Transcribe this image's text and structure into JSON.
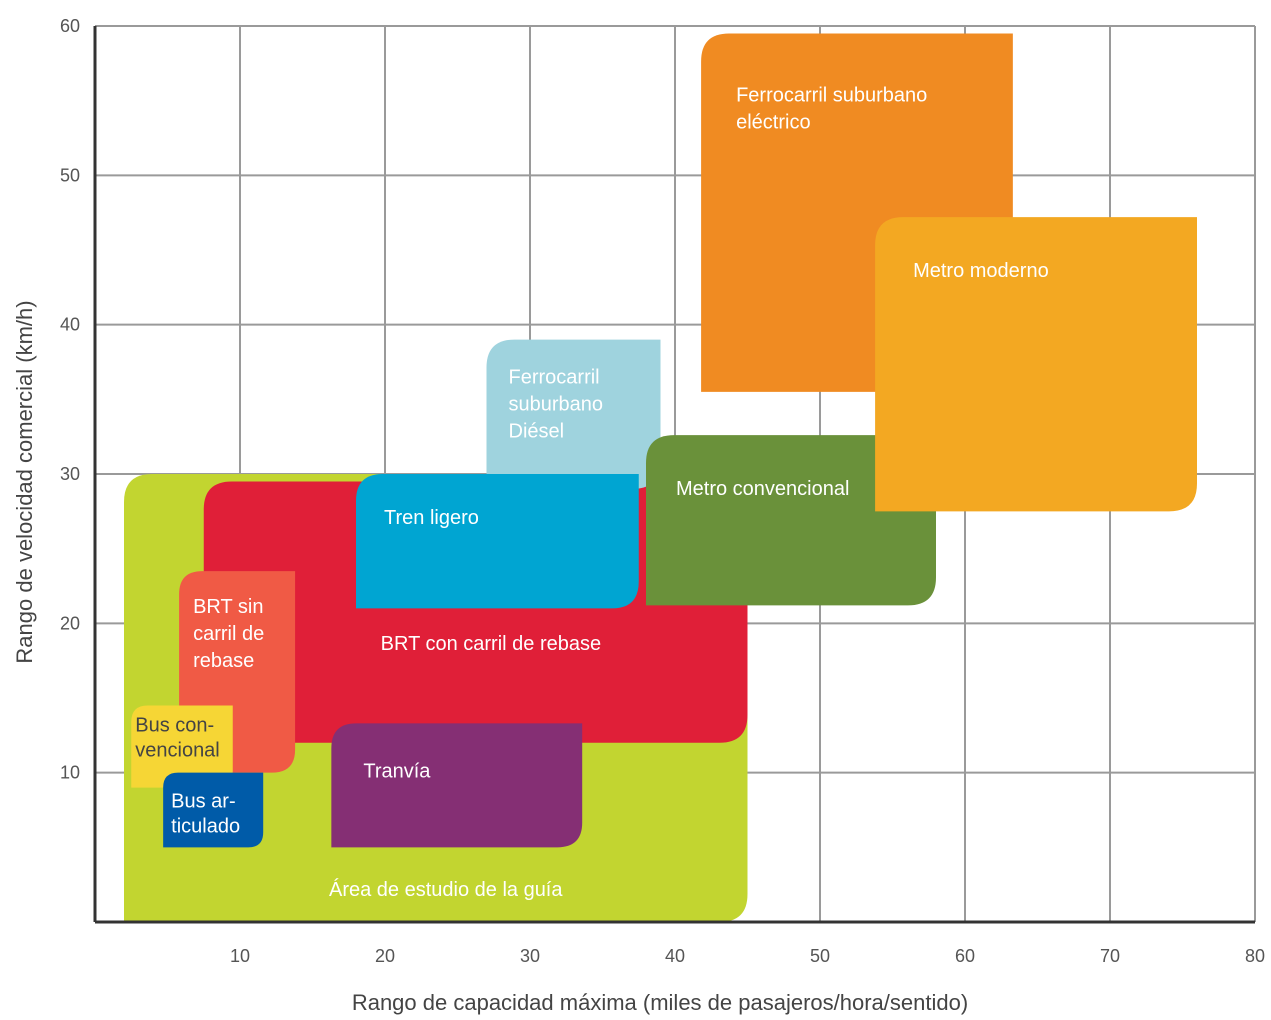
{
  "chart_data": {
    "type": "area",
    "xlabel": "Rango de capacidad máxima (miles de pasajeros/hora/sentido)",
    "ylabel": "Rango de velocidad comercial (km/h)",
    "xlim": [
      0,
      80
    ],
    "ylim": [
      0,
      60
    ],
    "xticks": [
      10,
      20,
      30,
      40,
      50,
      60,
      70,
      80
    ],
    "yticks": [
      10,
      20,
      30,
      40,
      50,
      60
    ],
    "grid": true,
    "regions": [
      {
        "id": "area-estudio",
        "label": [
          "Área de estudio de la guía"
        ],
        "x": [
          2,
          45
        ],
        "y": [
          0,
          30
        ],
        "color": "#c2d530",
        "text_color": "#ffffff"
      },
      {
        "id": "brt-rebase",
        "label": [
          "BRT con carril de rebase"
        ],
        "x": [
          7.5,
          45
        ],
        "y": [
          12,
          29.5
        ],
        "color": "#e01f38",
        "text_color": "#ffffff"
      },
      {
        "id": "ferrocarril-diesel",
        "label": [
          "Ferrocarril",
          "suburbano",
          "Diésel"
        ],
        "x": [
          27,
          39
        ],
        "y": [
          29,
          39
        ],
        "color": "#9fd3de",
        "text_color": "#ffffff"
      },
      {
        "id": "tren-ligero",
        "label": [
          "Tren ligero"
        ],
        "x": [
          18,
          37.5
        ],
        "y": [
          21,
          30
        ],
        "color": "#00a5d2",
        "text_color": "#ffffff"
      },
      {
        "id": "brt-sin-rebase",
        "label": [
          "BRT sin",
          "carril de",
          "rebase"
        ],
        "x": [
          5.8,
          13.8
        ],
        "y": [
          10,
          23.5
        ],
        "color": "#f05a45",
        "text_color": "#ffffff"
      },
      {
        "id": "bus-convencional",
        "label": [
          "Bus con-",
          "vencional"
        ],
        "x": [
          2.5,
          9.5
        ],
        "y": [
          9,
          14.5
        ],
        "color": "#f6d635",
        "text_color": "#444444"
      },
      {
        "id": "bus-articulado",
        "label": [
          "Bus ar-",
          "ticulado"
        ],
        "x": [
          4.7,
          11.6
        ],
        "y": [
          5,
          10
        ],
        "color": "#005ba8",
        "text_color": "#ffffff"
      },
      {
        "id": "tranvia",
        "label": [
          "Tranvía"
        ],
        "x": [
          16.3,
          33.6
        ],
        "y": [
          5,
          13.3
        ],
        "color": "#852f74",
        "text_color": "#ffffff"
      },
      {
        "id": "metro-convencional",
        "label": [
          "Metro convencional"
        ],
        "x": [
          38,
          58
        ],
        "y": [
          21.2,
          32.6
        ],
        "color": "#6a913a",
        "text_color": "#ffffff"
      },
      {
        "id": "ferrocarril-electrico",
        "label": [
          "Ferrocarril suburbano",
          "eléctrico"
        ],
        "x": [
          41.8,
          63.3
        ],
        "y": [
          35.5,
          59.5
        ],
        "color": "#f08b22",
        "text_color": "#ffffff"
      },
      {
        "id": "metro-moderno",
        "label": [
          "Metro moderno"
        ],
        "x": [
          53.8,
          76
        ],
        "y": [
          27.5,
          47.2
        ],
        "color": "#f3a822",
        "text_color": "#ffffff"
      }
    ]
  }
}
